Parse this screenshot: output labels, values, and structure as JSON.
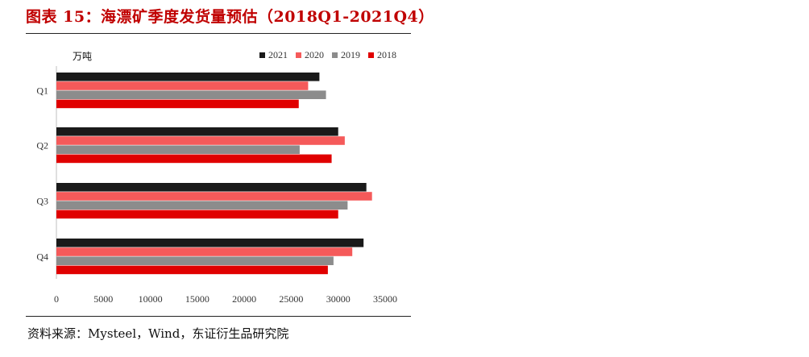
{
  "figure": {
    "title": "图表 15：海漂矿季度发货量预估（2018Q1-2021Q4）",
    "source": "资料来源：Mysteel，Wind，东证衍生品研究院"
  },
  "chart_data": {
    "type": "bar",
    "orientation": "horizontal",
    "unit": "万吨",
    "categories": [
      "Q1",
      "Q2",
      "Q3",
      "Q4"
    ],
    "series": [
      {
        "name": "2021",
        "color": "#1a1a1a",
        "values": [
          28000,
          30000,
          33000,
          32700
        ]
      },
      {
        "name": "2020",
        "color": "#f55a5a",
        "values": [
          26800,
          30700,
          33600,
          31500
        ]
      },
      {
        "name": "2019",
        "color": "#8c8c8c",
        "values": [
          28700,
          25900,
          31000,
          29500
        ]
      },
      {
        "name": "2018",
        "color": "#e00000",
        "values": [
          25800,
          29300,
          30000,
          28900
        ]
      }
    ],
    "xlim": [
      0,
      35000
    ],
    "xticks": [
      "0",
      "5000",
      "10000",
      "15000",
      "20000",
      "25000",
      "30000",
      "35000"
    ],
    "legend_order": [
      "2021",
      "2020",
      "2019",
      "2018"
    ],
    "legend_position": "top-right",
    "grid": false
  }
}
